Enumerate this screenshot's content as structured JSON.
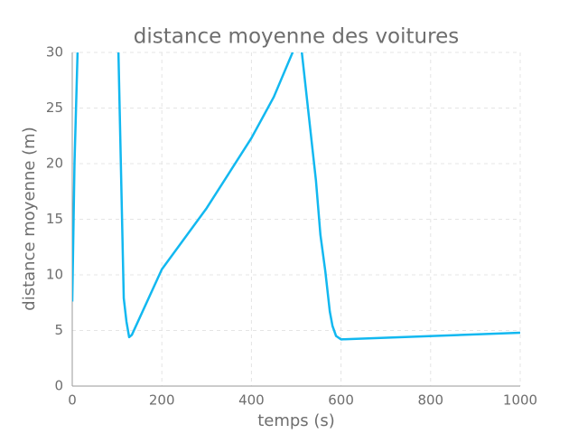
{
  "chart_data": {
    "type": "line",
    "title": "distance moyenne des voitures",
    "x_label": "temps (s)",
    "y_label": "distance moyenne (m)",
    "x": [
      0,
      5,
      12,
      103,
      115,
      121,
      127,
      133,
      200,
      300,
      400,
      450,
      494,
      512,
      524,
      544,
      554,
      565,
      575,
      581,
      589,
      600,
      1000
    ],
    "series": [
      {
        "name": "distance",
        "color": "#12b8f0",
        "values": [
          7.6,
          20,
          30.2,
          30.2,
          7.9,
          5.8,
          4.4,
          4.6,
          10.5,
          16,
          22.3,
          26,
          30.2,
          30.2,
          25.8,
          18.5,
          13.6,
          10.3,
          6.7,
          5.4,
          4.5,
          4.2,
          4.8
        ]
      }
    ],
    "xlim": [
      0,
      1000
    ],
    "xticks": [
      0,
      200,
      400,
      600,
      800,
      1000
    ],
    "ylim": [
      0,
      30
    ],
    "yticks": [
      0,
      5,
      10,
      15,
      20,
      25,
      30
    ],
    "grid": true
  }
}
